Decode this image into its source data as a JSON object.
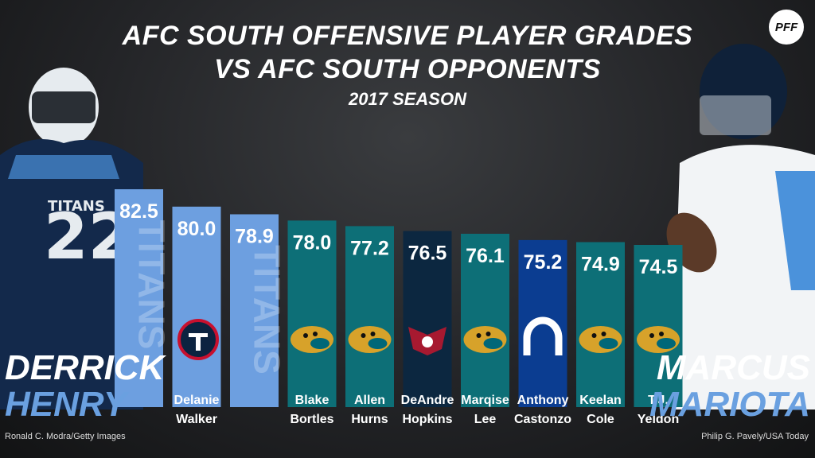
{
  "header": {
    "title_line1": "AFC SOUTH OFFENSIVE PLAYER GRADES",
    "title_line2": "VS AFC SOUTH OPPONENTS",
    "subtitle": "2017 SEASON",
    "logo_text": "PFF"
  },
  "left_player": {
    "first": "DERRICK",
    "last": "HENRY",
    "credit": "Ronald C. Modra/Getty Images"
  },
  "right_player": {
    "first": "MARCUS",
    "last": "MARIOTA",
    "credit": "Philip G. Pavely/USA Today"
  },
  "colors": {
    "titans_light": "#6d9fe0",
    "jaguars_teal": "#0d6f77",
    "texans_navy": "#0c2740",
    "colts_blue": "#0b3d91",
    "name_accent": "#6aa0e0"
  },
  "chart_data": {
    "type": "bar",
    "title": "AFC SOUTH OFFENSIVE PLAYER GRADES VS AFC SOUTH OPPONENTS",
    "subtitle": "2017 SEASON",
    "categories": [
      "",
      "Delanie Walker",
      "",
      "Blake Bortles",
      "Allen Hurns",
      "DeAndre Hopkins",
      "Marqise Lee",
      "Anthony Castonzo",
      "Keelan Cole",
      "T.J. Yeldon"
    ],
    "values": [
      82.5,
      80.0,
      78.9,
      78.0,
      77.2,
      76.5,
      76.1,
      75.2,
      74.9,
      74.5
    ],
    "value_labels": [
      "82.5",
      "80.0",
      "78.9",
      "78.0",
      "77.2",
      "76.5",
      "76.1",
      "75.2",
      "74.9",
      "74.5"
    ],
    "label_lines": [
      [],
      [
        "Delanie",
        "Walker"
      ],
      [],
      [
        "Blake",
        "Bortles"
      ],
      [
        "Allen",
        "Hurns"
      ],
      [
        "DeAndre",
        "Hopkins"
      ],
      [
        "Marqise",
        "Lee"
      ],
      [
        "Anthony",
        "Castonzo"
      ],
      [
        "Keelan",
        "Cole"
      ],
      [
        "T.J.",
        "Yeldon"
      ]
    ],
    "teams": [
      "titans",
      "titans",
      "titans",
      "jaguars",
      "jaguars",
      "texans",
      "jaguars",
      "colts",
      "jaguars",
      "jaguars"
    ],
    "team_logo_text": [
      "TITANS",
      "",
      "TITANS",
      "",
      "",
      "",
      "",
      "",
      "",
      ""
    ],
    "ylim": [
      70,
      84
    ]
  }
}
